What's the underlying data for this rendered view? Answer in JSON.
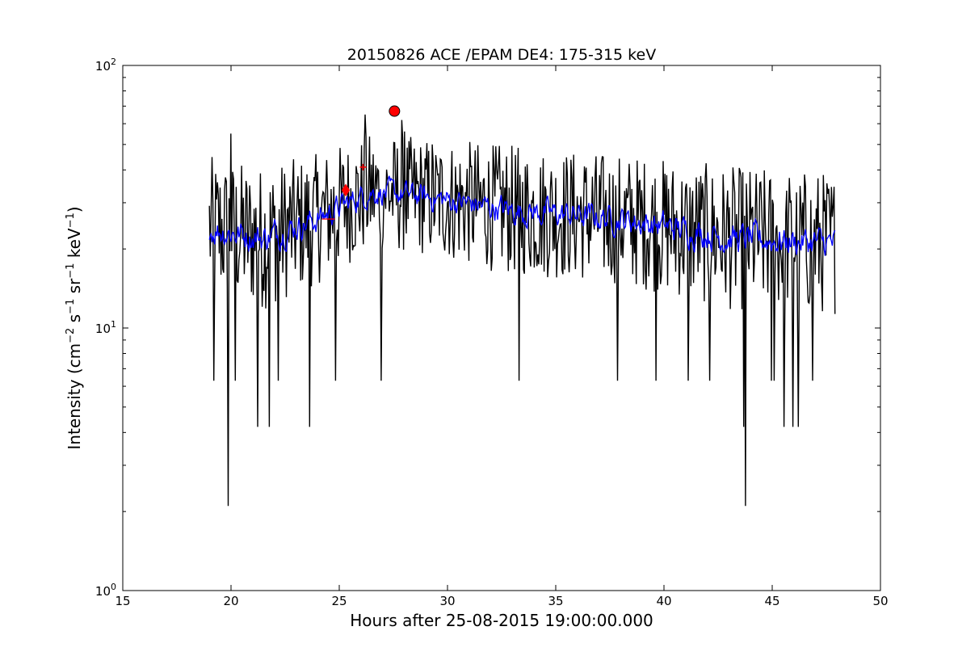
{
  "chart_data": {
    "type": "line",
    "title": "20150826 ACE /EPAM DE4: 175-315 keV",
    "xlabel": "Hours after 25-08-2015 19:00:00.000",
    "ylabel_text": "Intensity (cm",
    "ylabel_parts": [
      {
        "t": "Intensity (cm",
        "sup": false
      },
      {
        "t": "−2",
        "sup": true
      },
      {
        "t": " s",
        "sup": false
      },
      {
        "t": "−1",
        "sup": true
      },
      {
        "t": " sr",
        "sup": false
      },
      {
        "t": "−1",
        "sup": true
      },
      {
        "t": " keV",
        "sup": false
      },
      {
        "t": "−1",
        "sup": true
      },
      {
        "t": ")",
        "sup": false
      }
    ],
    "xlim": [
      15,
      50
    ],
    "ylim": [
      1,
      100
    ],
    "yscale": "log",
    "x_ticks": [
      15,
      20,
      25,
      30,
      35,
      40,
      45,
      50
    ],
    "y_ticks": [
      {
        "value": 1,
        "base": "10",
        "exp": "0"
      },
      {
        "value": 10,
        "base": "10",
        "exp": "1"
      },
      {
        "value": 100,
        "base": "10",
        "exp": "2"
      }
    ],
    "grid": false,
    "series": [
      {
        "color": "#000000",
        "kind": "raw",
        "x_start": 19.0,
        "x_end": 47.9,
        "n_points": 700,
        "segments": [
          {
            "x": 19.0,
            "base": 24,
            "spread": 0.55
          },
          {
            "x": 21.5,
            "base": 22,
            "spread": 0.55
          },
          {
            "x": 24.0,
            "base": 26,
            "spread": 0.5
          },
          {
            "x": 26.5,
            "base": 33,
            "spread": 0.45
          },
          {
            "x": 28.5,
            "base": 32,
            "spread": 0.45
          },
          {
            "x": 33.0,
            "base": 28,
            "spread": 0.5
          },
          {
            "x": 38.0,
            "base": 26,
            "spread": 0.5
          },
          {
            "x": 43.0,
            "base": 22,
            "spread": 0.55
          },
          {
            "x": 47.9,
            "base": 21,
            "spread": 0.55
          }
        ],
        "spikes": [
          {
            "x": 19.85,
            "y": 2.1
          },
          {
            "x": 43.75,
            "y": 2.1
          },
          {
            "x": 43.7,
            "y": 4.2
          },
          {
            "x": 21.25,
            "y": 4.2
          },
          {
            "x": 21.75,
            "y": 4.2
          },
          {
            "x": 23.65,
            "y": 4.2
          },
          {
            "x": 45.55,
            "y": 4.2
          },
          {
            "x": 45.95,
            "y": 4.2
          },
          {
            "x": 46.2,
            "y": 4.2
          },
          {
            "x": 19.2,
            "y": 6.3
          },
          {
            "x": 20.2,
            "y": 6.3
          },
          {
            "x": 22.2,
            "y": 6.3
          },
          {
            "x": 24.85,
            "y": 6.3
          },
          {
            "x": 26.95,
            "y": 6.3
          },
          {
            "x": 33.3,
            "y": 6.3
          },
          {
            "x": 37.85,
            "y": 6.3
          },
          {
            "x": 39.65,
            "y": 6.3
          },
          {
            "x": 41.1,
            "y": 6.3
          },
          {
            "x": 42.1,
            "y": 6.3
          },
          {
            "x": 44.95,
            "y": 6.3
          },
          {
            "x": 45.1,
            "y": 6.3
          },
          {
            "x": 46.85,
            "y": 6.3
          },
          {
            "x": 26.2,
            "y": 65
          },
          {
            "x": 27.9,
            "y": 62
          },
          {
            "x": 20.0,
            "y": 55
          },
          {
            "x": 28.0,
            "y": 56
          },
          {
            "x": 29.3,
            "y": 50
          }
        ]
      },
      {
        "color": "#0000ff",
        "kind": "smoothed",
        "x_start": 19.0,
        "x_end": 47.9,
        "n_points": 700,
        "segments": [
          {
            "x": 19.0,
            "base": 24,
            "spread": 0.22
          },
          {
            "x": 21.5,
            "base": 22,
            "spread": 0.22
          },
          {
            "x": 24.0,
            "base": 26,
            "spread": 0.2
          },
          {
            "x": 26.5,
            "base": 33,
            "spread": 0.18
          },
          {
            "x": 28.5,
            "base": 32,
            "spread": 0.18
          },
          {
            "x": 33.0,
            "base": 28,
            "spread": 0.2
          },
          {
            "x": 38.0,
            "base": 26,
            "spread": 0.2
          },
          {
            "x": 43.0,
            "base": 22,
            "spread": 0.22
          },
          {
            "x": 47.9,
            "base": 21,
            "spread": 0.22
          }
        ]
      }
    ],
    "markers": [
      {
        "x": 27.55,
        "y": 67,
        "shape": "circle",
        "color": "#ff0000"
      },
      {
        "x": 25.3,
        "y": 33.5,
        "shape": "diamond",
        "color": "#ff0000"
      },
      {
        "x": 26.1,
        "y": 41,
        "shape": "plus",
        "color": "#ff0000"
      },
      {
        "x": 24.5,
        "y": 26,
        "shape": "hline",
        "color": "#ff0000"
      }
    ]
  }
}
